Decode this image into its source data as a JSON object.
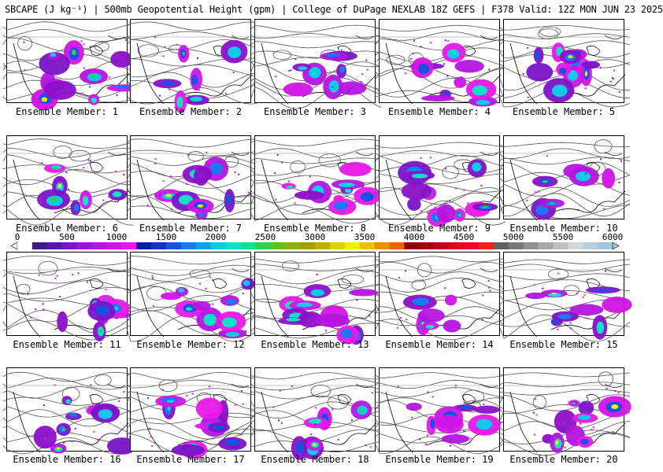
{
  "header": {
    "title": "SBCAPE (J kg⁻¹) | 500mb Geopotential Height (gpm) | College of DuPage NEXLAB 18Z GEFS | F378 Valid: 12Z MON JUN 23 2025"
  },
  "colorbar": {
    "tick_labels": [
      "0",
      "500",
      "1000",
      "1500",
      "2000",
      "2500",
      "3000",
      "3500",
      "4000",
      "4500",
      "5000",
      "5500",
      "6000"
    ],
    "colors": [
      "#ffffff",
      "#3a1a8c",
      "#5a16b0",
      "#7a14c8",
      "#9a12d8",
      "#b414e0",
      "#d014e6",
      "#e818e8",
      "#0a1aa8",
      "#1030c8",
      "#1a50e0",
      "#1a78f0",
      "#10a0f0",
      "#10c8e8",
      "#10e0c8",
      "#10e090",
      "#30d050",
      "#60c020",
      "#90b010",
      "#a0a000",
      "#c0b000",
      "#e0d000",
      "#f0f000",
      "#f0c000",
      "#f09000",
      "#f06000",
      "#8a0000",
      "#a00010",
      "#c00020",
      "#e00020",
      "#f00030",
      "#f82020",
      "#606060",
      "#787878",
      "#909090",
      "#a8a8a8",
      "#c0c0c0",
      "#d0d8dc",
      "#b8d0dc",
      "#a0c8dc"
    ]
  },
  "members": [
    {
      "label": "Ensemble Member: 1"
    },
    {
      "label": "Ensemble Member: 2"
    },
    {
      "label": "Ensemble Member: 3"
    },
    {
      "label": "Ensemble Member: 4"
    },
    {
      "label": "Ensemble Member: 5"
    },
    {
      "label": "Ensemble Member: 6"
    },
    {
      "label": "Ensemble Member: 7"
    },
    {
      "label": "Ensemble Member: 8"
    },
    {
      "label": "Ensemble Member: 9"
    },
    {
      "label": "Ensemble Member: 10"
    },
    {
      "label": "Ensemble Member: 11"
    },
    {
      "label": "Ensemble Member: 12"
    },
    {
      "label": "Ensemble Member: 13"
    },
    {
      "label": "Ensemble Member: 14"
    },
    {
      "label": "Ensemble Member: 15"
    },
    {
      "label": "Ensemble Member: 16"
    },
    {
      "label": "Ensemble Member: 17"
    },
    {
      "label": "Ensemble Member: 18"
    },
    {
      "label": "Ensemble Member: 19"
    },
    {
      "label": "Ensemble Member: 20"
    }
  ]
}
